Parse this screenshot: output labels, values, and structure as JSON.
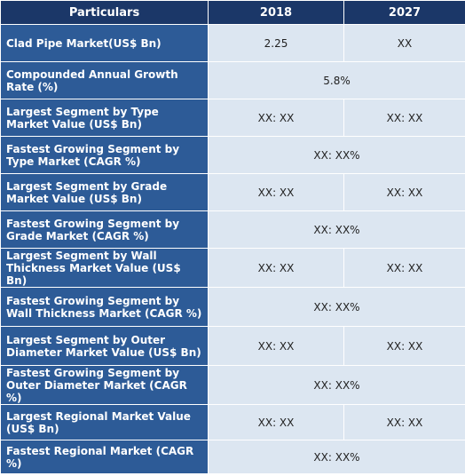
{
  "header": {
    "particulars": "Particulars",
    "year_start": "2018",
    "year_end": "2027"
  },
  "rows": [
    {
      "label": "Clad Pipe Market(US$ Bn)",
      "value_2018": "2.25",
      "value_2027": "XX"
    },
    {
      "label": "Compounded Annual Growth Rate (%)",
      "value": "5.8%"
    },
    {
      "label": "Largest Segment by Type Market Value (US$ Bn)",
      "value_2018": "XX: XX",
      "value_2027": "XX: XX"
    },
    {
      "label": "Fastest Growing Segment by Type Market (CAGR %)",
      "value": "XX: XX%"
    },
    {
      "label": "Largest Segment by Grade Market Value (US$ Bn)",
      "value_2018": "XX: XX",
      "value_2027": "XX: XX"
    },
    {
      "label": "Fastest Growing Segment by Grade Market (CAGR %)",
      "value": "XX: XX%"
    },
    {
      "label": "Largest Segment by Wall Thickness  Market Value (US$ Bn)",
      "value_2018": "XX: XX",
      "value_2027": "XX: XX"
    },
    {
      "label": "Fastest Growing Segment by Wall Thickness  Market (CAGR %)",
      "value": "XX: XX%"
    },
    {
      "label": "Largest Segment by Outer Diameter Market Value (US$ Bn)",
      "value_2018": "XX: XX",
      "value_2027": "XX: XX"
    },
    {
      "label": "Fastest Growing Segment by Outer Diameter Market (CAGR %)",
      "value": "XX: XX%"
    },
    {
      "label": "Largest Regional Market Value (US$ Bn)",
      "value_2018": "XX: XX",
      "value_2027": "XX: XX"
    },
    {
      "label": "Fastest Regional Market (CAGR %)",
      "value": "XX: XX%"
    }
  ]
}
